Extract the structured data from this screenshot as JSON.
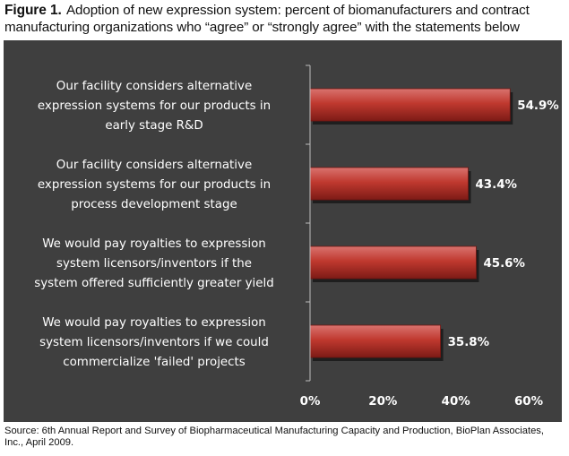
{
  "caption": {
    "label": "Figure 1.",
    "text": "Adoption of new expression system: percent of biomanufacturers and contract manufacturing organizations who “agree” or “strongly agree” with the statements below"
  },
  "chart_data": {
    "type": "bar",
    "orientation": "horizontal",
    "categories": [
      [
        "Our facility considers alternative",
        "expression systems for our products in",
        "early stage R&D"
      ],
      [
        "Our facility considers alternative",
        "expression systems for our products in",
        "process development stage"
      ],
      [
        "We would pay royalties to expression",
        "system licensors/inventors if the",
        "system offered sufficiently greater yield"
      ],
      [
        "We would pay royalties to expression",
        "system licensors/inventors if we could",
        "commercialize 'failed' projects"
      ]
    ],
    "values": [
      54.9,
      43.4,
      45.6,
      35.8
    ],
    "value_labels": [
      "54.9%",
      "43.4%",
      "45.6%",
      "35.8%"
    ],
    "xlim": [
      0,
      60
    ],
    "ticks": [
      0,
      20,
      40,
      60
    ],
    "tick_labels": [
      "0%",
      "20%",
      "40%",
      "60%"
    ],
    "title": "",
    "xlabel": "",
    "ylabel": "",
    "grid": false,
    "colors": {
      "panel": "#3f3f3f",
      "bar_light": "#d9736f",
      "bar_mid": "#c0392f",
      "bar_dark": "#7d1b16",
      "axis": "#bdbdbd",
      "text": "#ffffff"
    }
  },
  "source": "Source: 6th Annual Report and Survey of Biopharmaceutical Manufacturing Capacity and Production, BioPlan Associates, Inc., April 2009."
}
